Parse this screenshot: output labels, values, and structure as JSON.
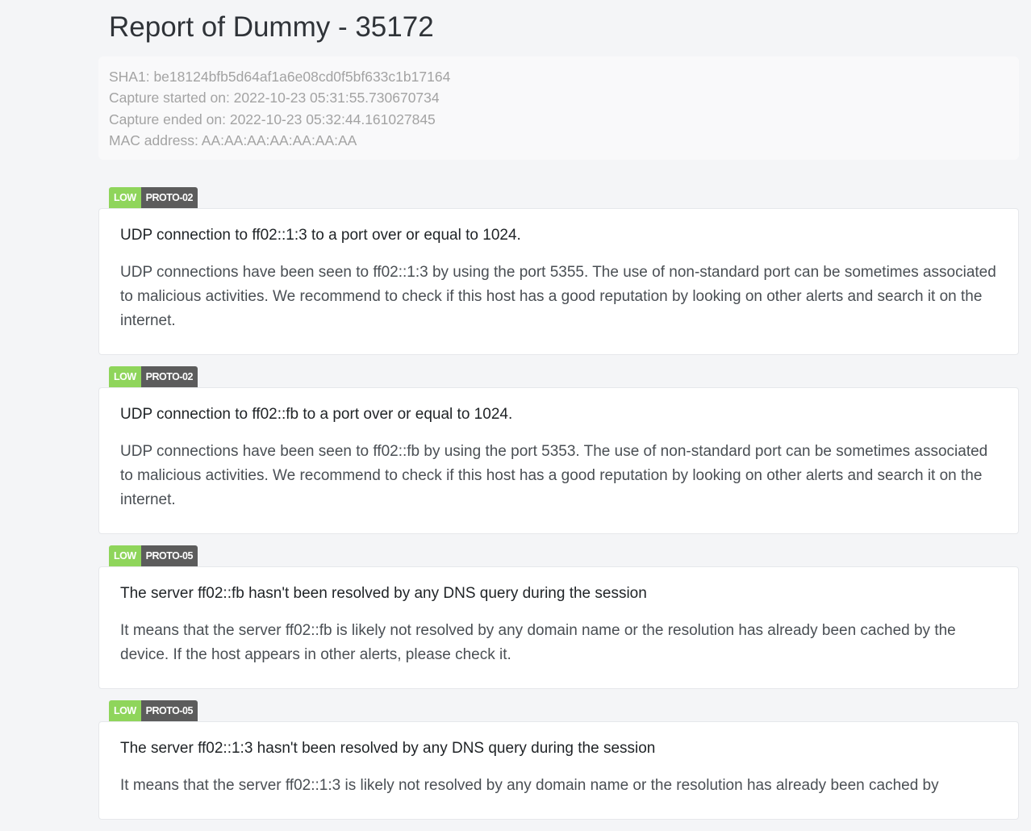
{
  "page": {
    "title": "Report of Dummy - 35172"
  },
  "info": {
    "sha1": "SHA1: be18124bfb5d64af1a6e08cd0f5bf633c1b17164",
    "capture_started": "Capture started on: 2022-10-23 05:31:55.730670734",
    "capture_ended": "Capture ended on: 2022-10-23 05:32:44.161027845",
    "mac": "MAC address: AA:AA:AA:AA:AA:AA:AA"
  },
  "colors": {
    "low": "#8fd55b",
    "id_badge": "#5c5c5c"
  },
  "alerts": [
    {
      "level": "LOW",
      "id": "PROTO-02",
      "title": "UDP connection to ff02::1:3 to a port over or equal to 1024.",
      "description": "UDP connections have been seen to ff02::1:3 by using the port 5355. The use of non-standard port can be sometimes associated to malicious activities. We recommend to check if this host has a good reputation by looking on other alerts and search it on the internet."
    },
    {
      "level": "LOW",
      "id": "PROTO-02",
      "title": "UDP connection to ff02::fb to a port over or equal to 1024.",
      "description": "UDP connections have been seen to ff02::fb by using the port 5353. The use of non-standard port can be sometimes associated to malicious activities. We recommend to check if this host has a good reputation by looking on other alerts and search it on the internet."
    },
    {
      "level": "LOW",
      "id": "PROTO-05",
      "title": "The server ff02::fb hasn't been resolved by any DNS query during the session",
      "description": "It means that the server ff02::fb is likely not resolved by any domain name or the resolution has already been cached by the device. If the host appears in other alerts, please check it."
    },
    {
      "level": "LOW",
      "id": "PROTO-05",
      "title": "The server ff02::1:3 hasn't been resolved by any DNS query during the session",
      "description": "It means that the server ff02::1:3 is likely not resolved by any domain name or the resolution has already been cached by"
    }
  ]
}
